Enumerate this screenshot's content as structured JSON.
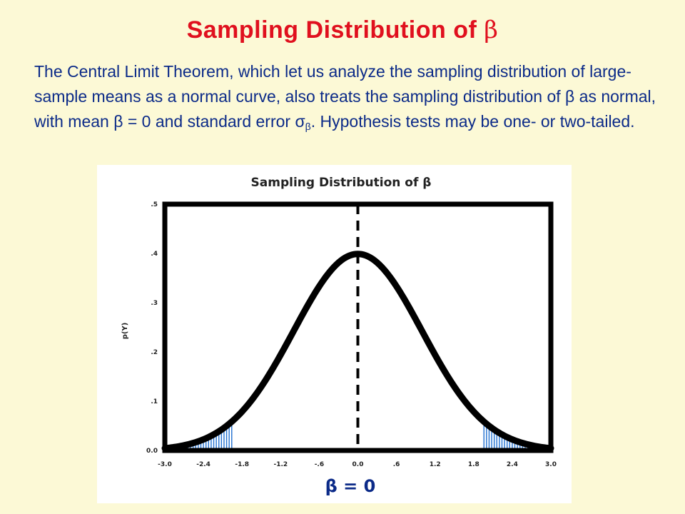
{
  "slide": {
    "title": "Sampling Distribution of ",
    "title_symbol": "β",
    "paragraph": {
      "t1": "The Central Limit Theorem, which let us analyze the sampling distribution of large-sample means as a normal curve, also treats the sampling distribution of ",
      "b1": "β",
      "t2": " as normal, with mean ",
      "b2": "β",
      "t3": " = 0 and standard error σ",
      "sub": "β",
      "t4": ". Hypothesis tests may be one- or two-tailed."
    }
  },
  "colors": {
    "background": "#fcf9d6",
    "title": "#e0101e",
    "text": "#0b2a88",
    "curve": "#000000",
    "shading": "#1f6fd0",
    "caption": "#0b2a88"
  },
  "chart_data": {
    "type": "area",
    "title": "Sampling Distribution of β",
    "ylabel": "p(Y)",
    "xlabel": "",
    "xlim": [
      -3.0,
      3.0
    ],
    "ylim": [
      0.0,
      0.5
    ],
    "x_tick_labels": [
      "-3.0",
      "-2.4",
      "-1.8",
      "-1.2",
      "-.6",
      "0.0",
      ".6",
      "1.2",
      "1.8",
      "2.4",
      "3.0"
    ],
    "y_tick_labels": [
      "0.0",
      ".1",
      ".2",
      ".3",
      ".4",
      ".5"
    ],
    "curve": "standard normal density",
    "mean": 0,
    "series": [
      {
        "x": [
          -3.0,
          -2.4,
          -1.8,
          -1.2,
          -0.6,
          0.0,
          0.6,
          1.2,
          1.8,
          2.4,
          3.0
        ],
        "values": [
          0.004,
          0.022,
          0.079,
          0.194,
          0.333,
          0.399,
          0.333,
          0.194,
          0.079,
          0.022,
          0.004
        ]
      }
    ],
    "shaded_regions": [
      [
        -3.0,
        -1.96
      ],
      [
        1.96,
        3.0
      ]
    ],
    "reference_line": {
      "x": 0,
      "style": "dashed"
    },
    "caption": "β = 0",
    "grid": false
  }
}
